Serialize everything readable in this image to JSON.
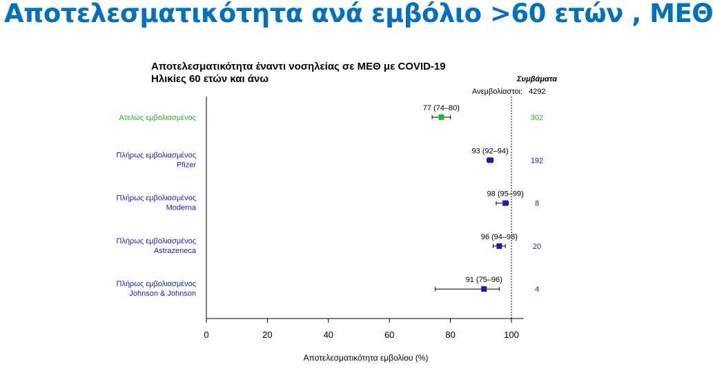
{
  "slide_title": "Αποτελεσματικότητα ανά εμβόλιο >60 ετών , ΜΕΘ",
  "chart_data": {
    "type": "forest",
    "title": "Αποτελεσματικότητα έναντι νοσηλείας σε ΜΕΘ με COVID-19",
    "subtitle": "Ηλικίες 60 ετών και άνω",
    "xlabel": "Αποτελεσματικότητα εμβολίου (%)",
    "xlim": [
      0,
      104
    ],
    "xticks": [
      0,
      20,
      40,
      60,
      80,
      100
    ],
    "reference_line": 100,
    "events_header": "Συμβάματα",
    "unvaccinated_label": "Ανεμβολίαστοι:",
    "unvaccinated_events": "4292",
    "rows": [
      {
        "label_lines": [
          "Ατελώς εμβολιασμένος"
        ],
        "estimate": 77,
        "lower": 74,
        "upper": 80,
        "ci_text": "77 (74–80)",
        "events": "302",
        "color": "#22bb22"
      },
      {
        "label_lines": [
          "Πλήρως εμβολιασμένος",
          "Pfizer"
        ],
        "estimate": 93,
        "lower": 92,
        "upper": 94,
        "ci_text": "93 (92–94)",
        "events": "192",
        "color": "#1a1ab8"
      },
      {
        "label_lines": [
          "Πλήρως εμβολιασμένος",
          "Moderna"
        ],
        "estimate": 98,
        "lower": 95,
        "upper": 99,
        "ci_text": "98 (95–99)",
        "events": "8",
        "color": "#1a1ab8"
      },
      {
        "label_lines": [
          "Πλήρως εμβολιασμένος",
          "Astrazeneca"
        ],
        "estimate": 96,
        "lower": 94,
        "upper": 98,
        "ci_text": "96 (94–98)",
        "events": "20",
        "color": "#1a1ab8"
      },
      {
        "label_lines": [
          "Πλήρως εμβολιασμένος",
          "Johnson & Johnson"
        ],
        "estimate": 91,
        "lower": 75,
        "upper": 96,
        "ci_text": "91 (75–96)",
        "events": "4",
        "color": "#1a1ab8"
      }
    ]
  }
}
